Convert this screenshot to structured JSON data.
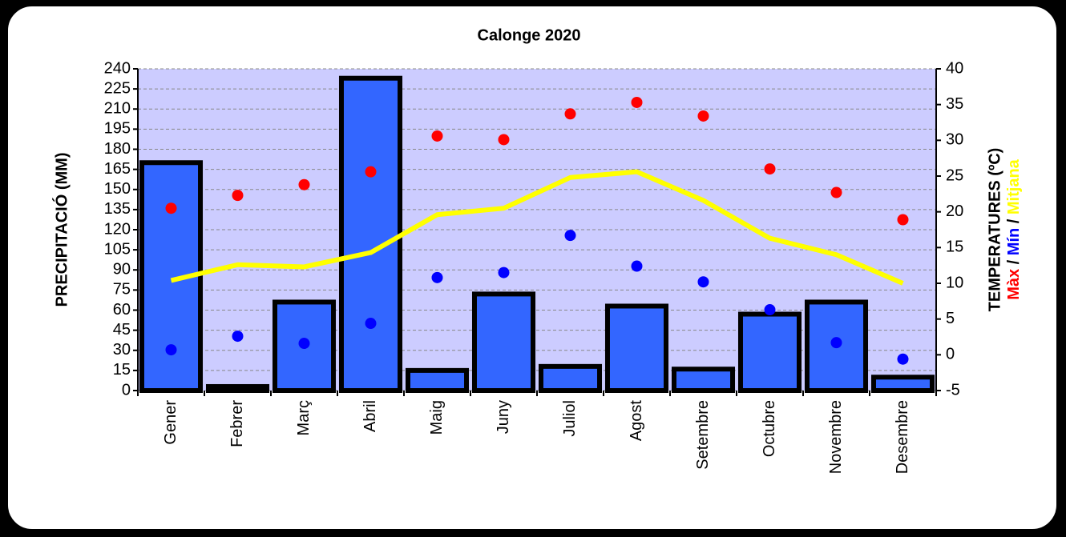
{
  "chart_data": {
    "type": "bar",
    "title": "Calonge 2020",
    "y_label": "PRECIPITACIÓ (MM)",
    "y2_label": "TEMPERATURES (ºC)",
    "legend_separator": " / ",
    "categories": [
      "Gener",
      "Febrer",
      "Març",
      "Abril",
      "Maig",
      "Juny",
      "Juliol",
      "Agost",
      "Setembre",
      "Octubre",
      "Novembre",
      "Desembre"
    ],
    "ylim": [
      0,
      240
    ],
    "yticks": [
      0,
      15,
      30,
      45,
      60,
      75,
      90,
      105,
      120,
      135,
      150,
      165,
      180,
      195,
      210,
      225,
      240
    ],
    "y2lim": [
      -5,
      40
    ],
    "y2ticks": [
      -5,
      0,
      5,
      10,
      15,
      20,
      25,
      30,
      35,
      40
    ],
    "grid": true,
    "plot_background": "#ccccff",
    "series": [
      {
        "type": "bar",
        "color": "#3366ff",
        "values": [
          170,
          3,
          66,
          233,
          15,
          72,
          18,
          63,
          16,
          57,
          66,
          10
        ]
      },
      {
        "type": "scatter",
        "name": "Màx",
        "color": "#ff0000",
        "axis": "y2",
        "values": [
          20.5,
          22.3,
          23.8,
          25.6,
          30.6,
          30.1,
          33.7,
          35.3,
          33.4,
          26.0,
          22.7,
          18.9
        ]
      },
      {
        "type": "scatter",
        "name": "Mín",
        "color": "#0000ff",
        "axis": "y2",
        "values": [
          0.7,
          2.6,
          1.6,
          4.4,
          10.8,
          11.5,
          16.7,
          12.4,
          10.2,
          6.3,
          1.7,
          -0.6
        ]
      },
      {
        "type": "line",
        "name": "Mitjana",
        "color": "#ffff00",
        "axis": "y2",
        "values": [
          10.4,
          12.6,
          12.3,
          14.3,
          19.6,
          20.5,
          24.8,
          25.6,
          21.6,
          16.3,
          14.0,
          10.0
        ]
      }
    ]
  }
}
